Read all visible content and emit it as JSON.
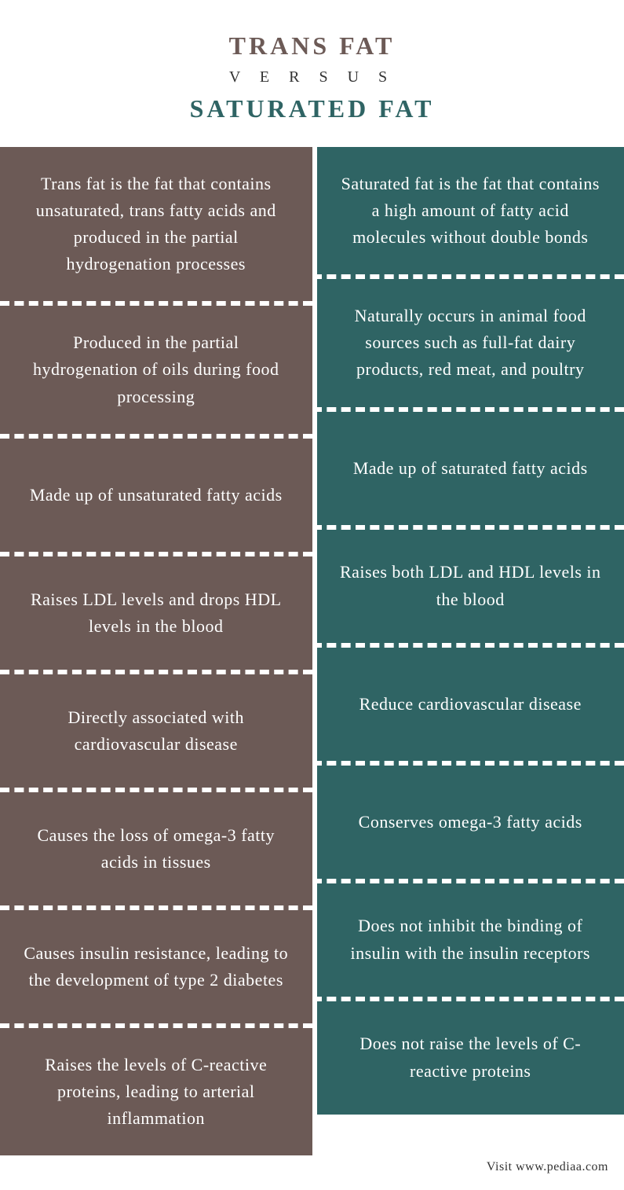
{
  "header": {
    "title_left": "TRANS FAT",
    "versus": "V E R S U S",
    "title_right": "SATURATED FAT",
    "title_left_color": "#6c5a56",
    "title_right_color": "#2f6464"
  },
  "columns": {
    "left_bg": "#6c5a56",
    "right_bg": "#2f6464",
    "text_color": "#ffffff",
    "cell_fontsize": 22
  },
  "rows": [
    {
      "left": "Trans fat is the fat that contains unsaturated, trans fatty acids and produced in the partial hydrogenation processes",
      "right": "Saturated fat is the fat that contains a high amount of fatty acid molecules without double bonds"
    },
    {
      "left": "Produced in the partial hydrogenation of oils during food processing",
      "right": "Naturally occurs in animal food sources such as full-fat dairy products, red meat, and poultry"
    },
    {
      "left": "Made up of unsaturated fatty acids",
      "right": "Made up of saturated fatty acids"
    },
    {
      "left": "Raises LDL levels and drops HDL levels in the blood",
      "right": "Raises both LDL and HDL levels in the blood"
    },
    {
      "left": "Directly associated with cardiovascular disease",
      "right": "Reduce cardiovascular disease"
    },
    {
      "left": "Causes the loss of omega-3 fatty acids in tissues",
      "right": "Conserves omega-3 fatty acids"
    },
    {
      "left": "Causes insulin resistance, leading to the development of type 2 diabetes",
      "right": "Does not inhibit the binding of insulin with the insulin receptors"
    },
    {
      "left": "Raises the levels of C-reactive proteins, leading to arterial inflammation",
      "right": "Does not raise the levels of C-reactive proteins"
    }
  ],
  "footer": {
    "text": "Visit www.pediaa.com"
  }
}
